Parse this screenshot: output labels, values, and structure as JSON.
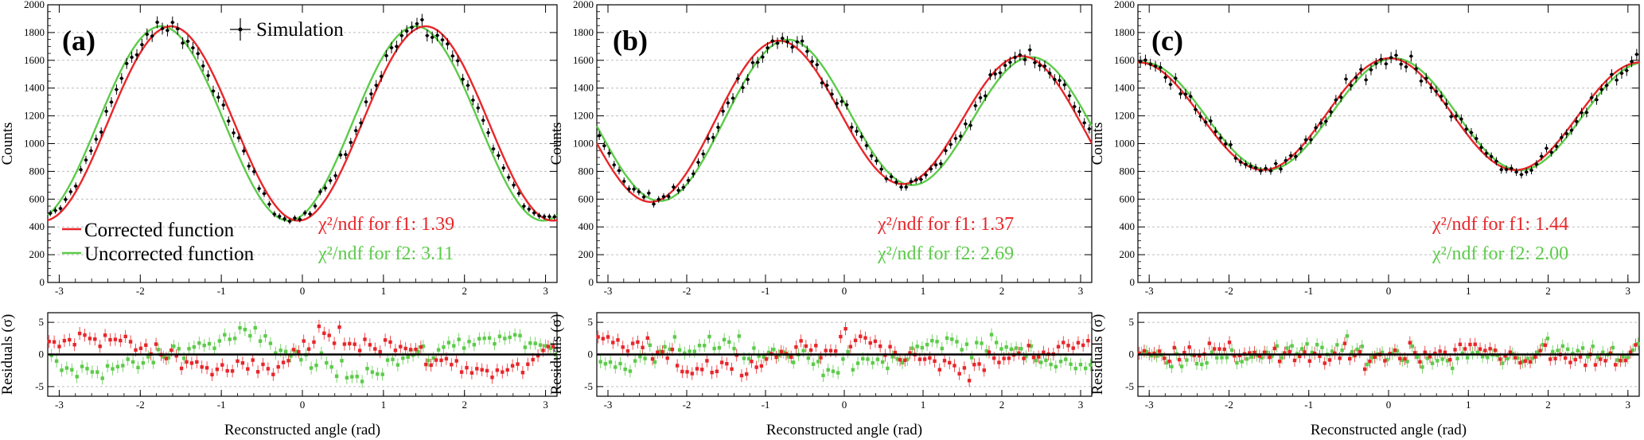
{
  "figure": {
    "shared_x_title": "Reconstructed angle (rad)",
    "top_y_title": "Counts",
    "bottom_y_title": "Residuals (σ)",
    "chi_prefix_f1": "χ²/ndf for f1:",
    "chi_prefix_f2": "χ²/ndf for f2:",
    "legend": {
      "simulation": "Simulation",
      "corrected": "Corrected function",
      "uncorrected": "Uncorrected function"
    }
  },
  "colors": {
    "corrected": "#e8262a",
    "uncorrected": "#5ccb4a",
    "data": "#000000",
    "grid": "#bdbdbd"
  },
  "chart_data": [
    {
      "type": "scatter",
      "panel": "(a)",
      "xlabel": "Reconstructed angle (rad)",
      "ylabel": "Counts",
      "xlim": [
        -3.14159,
        3.14159
      ],
      "ylim": [
        0,
        2000
      ],
      "x_ticks": [
        -3,
        -2,
        -1,
        0,
        1,
        2,
        3
      ],
      "y_ticks": [
        0,
        200,
        400,
        600,
        800,
        1000,
        1200,
        1400,
        1600,
        1800,
        2000
      ],
      "grid": "horizontal",
      "series": [
        {
          "name": "Simulation",
          "kind": "points_with_errors"
        },
        {
          "name": "Corrected function",
          "kind": "curve",
          "A": 1145,
          "B": 700,
          "C": 0,
          "phase": -3.04,
          "freq": 2
        },
        {
          "name": "Uncorrected function",
          "kind": "curve",
          "A": 1145,
          "B": 700,
          "C": 0,
          "phase": -2.8,
          "freq": 2
        }
      ],
      "chi2_f1": "1.39",
      "chi2_f2": "3.11",
      "residuals": {
        "ylabel": "Residuals (σ)",
        "ylim": [
          -6.5,
          6.5
        ],
        "y_ticks": [
          -5,
          0,
          5
        ]
      }
    },
    {
      "type": "scatter",
      "panel": "(b)",
      "xlabel": "Reconstructed angle (rad)",
      "ylabel": "Counts",
      "xlim": [
        -3.14159,
        3.14159
      ],
      "ylim": [
        0,
        2000
      ],
      "x_ticks": [
        -3,
        -2,
        -1,
        0,
        1,
        2,
        3
      ],
      "y_ticks": [
        0,
        200,
        400,
        600,
        800,
        1000,
        1200,
        1400,
        1600,
        1800,
        2000
      ],
      "grid": "horizontal",
      "series": [
        {
          "name": "Corrected function",
          "kind": "curve",
          "A": 1165,
          "B": 520,
          "C": 85,
          "phase": 1.72,
          "freq": 2
        },
        {
          "name": "Uncorrected function",
          "kind": "curve",
          "A": 1165,
          "B": 520,
          "C": 85,
          "phase": 1.48,
          "freq": 2
        }
      ],
      "chi2_f1": "1.37",
      "chi2_f2": "2.69",
      "residuals": {
        "ylabel": "Residuals (σ)",
        "ylim": [
          -6.5,
          6.5
        ],
        "y_ticks": [
          -5,
          0,
          5
        ]
      }
    },
    {
      "type": "scatter",
      "panel": "(c)",
      "xlabel": "Reconstructed angle (rad)",
      "ylabel": "Counts",
      "xlim": [
        -3.14159,
        3.14159
      ],
      "ylim": [
        0,
        2000
      ],
      "x_ticks": [
        -3,
        -2,
        -1,
        0,
        1,
        2,
        3
      ],
      "y_ticks": [
        0,
        200,
        400,
        600,
        800,
        1000,
        1200,
        1400,
        1600,
        1800,
        2000
      ],
      "grid": "horizontal",
      "series": [
        {
          "name": "Corrected function",
          "kind": "curve",
          "A": 1205,
          "B": 395,
          "C": 15,
          "phase": -0.02,
          "freq": 2
        },
        {
          "name": "Uncorrected function",
          "kind": "curve",
          "A": 1205,
          "B": 395,
          "C": 15,
          "phase": -0.14,
          "freq": 2
        }
      ],
      "chi2_f1": "1.44",
      "chi2_f2": "2.00",
      "residuals": {
        "ylabel": "Residuals (σ)",
        "ylim": [
          -6.5,
          6.5
        ],
        "y_ticks": [
          -5,
          0,
          5
        ]
      }
    }
  ]
}
